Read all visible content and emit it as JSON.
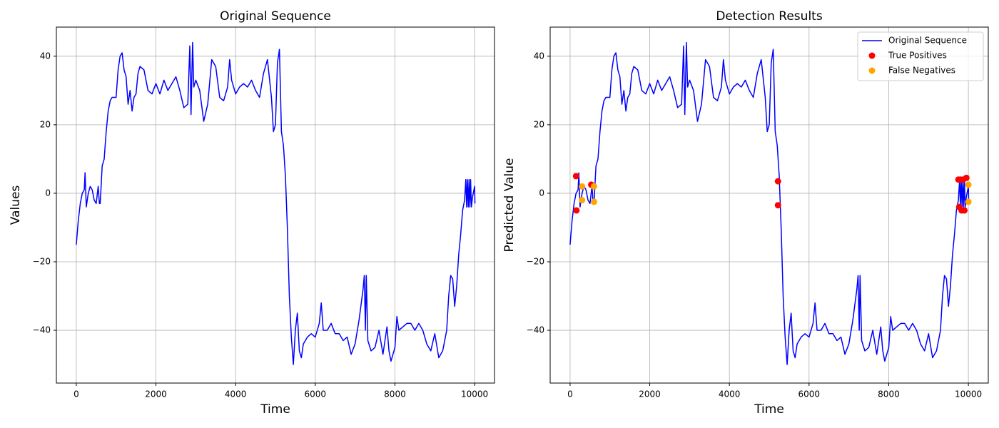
{
  "chart_data": [
    {
      "type": "line",
      "title": "Original Sequence",
      "xlabel": "Time",
      "ylabel": "Values",
      "xlim": [
        -500,
        10500
      ],
      "ylim": [
        -55.4,
        48.5
      ],
      "xticks": [
        0,
        2000,
        4000,
        6000,
        8000,
        10000
      ],
      "yticks": [
        {
          "value": -40,
          "label": "−40"
        },
        {
          "value": -20,
          "label": "−20"
        },
        0,
        20,
        40
      ],
      "grid": true,
      "series": [
        {
          "color": "#0000ff",
          "marker": "line",
          "x": [
            0,
            50,
            100,
            150,
            200,
            220,
            250,
            300,
            350,
            400,
            450,
            500,
            550,
            580,
            600,
            650,
            700,
            750,
            800,
            850,
            900,
            1000,
            1050,
            1100,
            1150,
            1200,
            1250,
            1300,
            1350,
            1400,
            1450,
            1500,
            1550,
            1600,
            1700,
            1800,
            1900,
            2000,
            2100,
            2200,
            2300,
            2400,
            2500,
            2600,
            2700,
            2800,
            2850,
            2880,
            2920,
            2950,
            3000,
            3100,
            3200,
            3300,
            3400,
            3500,
            3600,
            3700,
            3800,
            3850,
            3900,
            4000,
            4100,
            4200,
            4300,
            4400,
            4500,
            4600,
            4700,
            4800,
            4900,
            4950,
            5000,
            5050,
            5100,
            5150,
            5200,
            5250,
            5300,
            5350,
            5400,
            5450,
            5500,
            5550,
            5600,
            5650,
            5700,
            5800,
            5900,
            6000,
            6100,
            6150,
            6200,
            6300,
            6400,
            6500,
            6600,
            6700,
            6800,
            6900,
            7000,
            7100,
            7200,
            7230,
            7260,
            7280,
            7320,
            7400,
            7500,
            7600,
            7700,
            7800,
            7850,
            7900,
            8000,
            8050,
            8100,
            8200,
            8300,
            8400,
            8500,
            8600,
            8700,
            8800,
            8900,
            9000,
            9100,
            9200,
            9300,
            9350,
            9400,
            9450,
            9500,
            9550,
            9600,
            9650,
            9700,
            9750,
            9780,
            9800,
            9820,
            9840,
            9860,
            9880,
            9900,
            9920,
            9950,
            10000,
            10010
          ],
          "values": [
            -15,
            -8,
            -3,
            0,
            1,
            6,
            -4,
            0,
            2,
            1,
            -2,
            -3,
            2,
            -3,
            -3,
            8,
            10,
            18,
            24,
            27,
            28,
            28,
            36,
            40,
            41,
            36,
            34,
            26,
            30,
            24,
            28,
            29,
            35,
            37,
            36,
            30,
            29,
            32,
            29,
            33,
            30,
            32,
            34,
            30,
            25,
            26,
            43,
            23,
            44,
            31,
            33,
            30,
            21,
            26,
            39,
            37,
            28,
            27,
            31,
            39,
            33,
            29,
            31,
            32,
            31,
            33,
            30,
            28,
            35,
            39,
            28,
            18,
            20,
            38,
            42,
            18,
            14,
            5,
            -10,
            -30,
            -42,
            -50,
            -40,
            -35,
            -46,
            -48,
            -44,
            -42,
            -41,
            -42,
            -38,
            -32,
            -40,
            -40,
            -38,
            -41,
            -41,
            -43,
            -42,
            -47,
            -44,
            -37,
            -28,
            -24,
            -40,
            -24,
            -43,
            -46,
            -45,
            -40,
            -47,
            -39,
            -46,
            -49,
            -45,
            -36,
            -40,
            -39,
            -38,
            -38,
            -40,
            -38,
            -40,
            -44,
            -46,
            -41,
            -48,
            -46,
            -40,
            -30,
            -24,
            -25,
            -33,
            -27,
            -18,
            -12,
            -5,
            -2,
            4,
            -4,
            4,
            -4,
            4,
            -4,
            4,
            -4,
            -1,
            2,
            -3
          ]
        }
      ]
    },
    {
      "type": "line",
      "title": "Detection Results",
      "xlabel": "Time",
      "ylabel": "Predicted Value",
      "xlim": [
        -500,
        10500
      ],
      "ylim": [
        -55.4,
        48.5
      ],
      "xticks": [
        0,
        2000,
        4000,
        6000,
        8000,
        10000
      ],
      "yticks": [
        {
          "value": -40,
          "label": "−40"
        },
        {
          "value": -20,
          "label": "−20"
        },
        0,
        20,
        40
      ],
      "grid": true,
      "legend": "upper right",
      "series": [
        {
          "name": "Original Sequence",
          "color": "#0000ff",
          "marker": "line",
          "x": [
            0,
            50,
            100,
            150,
            200,
            220,
            250,
            300,
            350,
            400,
            450,
            500,
            550,
            580,
            600,
            650,
            700,
            750,
            800,
            850,
            900,
            1000,
            1050,
            1100,
            1150,
            1200,
            1250,
            1300,
            1350,
            1400,
            1450,
            1500,
            1550,
            1600,
            1700,
            1800,
            1900,
            2000,
            2100,
            2200,
            2300,
            2400,
            2500,
            2600,
            2700,
            2800,
            2850,
            2880,
            2920,
            2950,
            3000,
            3100,
            3200,
            3300,
            3400,
            3500,
            3600,
            3700,
            3800,
            3850,
            3900,
            4000,
            4100,
            4200,
            4300,
            4400,
            4500,
            4600,
            4700,
            4800,
            4900,
            4950,
            5000,
            5050,
            5100,
            5150,
            5200,
            5250,
            5300,
            5350,
            5400,
            5450,
            5500,
            5550,
            5600,
            5650,
            5700,
            5800,
            5900,
            6000,
            6100,
            6150,
            6200,
            6300,
            6400,
            6500,
            6600,
            6700,
            6800,
            6900,
            7000,
            7100,
            7200,
            7230,
            7260,
            7280,
            7320,
            7400,
            7500,
            7600,
            7700,
            7800,
            7850,
            7900,
            8000,
            8050,
            8100,
            8200,
            8300,
            8400,
            8500,
            8600,
            8700,
            8800,
            8900,
            9000,
            9100,
            9200,
            9300,
            9350,
            9400,
            9450,
            9500,
            9550,
            9600,
            9650,
            9700,
            9750,
            9780,
            9800,
            9820,
            9840,
            9860,
            9880,
            9900,
            9920,
            9950,
            10000,
            10010
          ],
          "values": [
            -15,
            -8,
            -3,
            0,
            1,
            6,
            -4,
            0,
            2,
            1,
            -2,
            -3,
            2,
            -3,
            -3,
            8,
            10,
            18,
            24,
            27,
            28,
            28,
            36,
            40,
            41,
            36,
            34,
            26,
            30,
            24,
            28,
            29,
            35,
            37,
            36,
            30,
            29,
            32,
            29,
            33,
            30,
            32,
            34,
            30,
            25,
            26,
            43,
            23,
            44,
            31,
            33,
            30,
            21,
            26,
            39,
            37,
            28,
            27,
            31,
            39,
            33,
            29,
            31,
            32,
            31,
            33,
            30,
            28,
            35,
            39,
            28,
            18,
            20,
            38,
            42,
            18,
            14,
            5,
            -10,
            -30,
            -42,
            -50,
            -40,
            -35,
            -46,
            -48,
            -44,
            -42,
            -41,
            -42,
            -38,
            -32,
            -40,
            -40,
            -38,
            -41,
            -41,
            -43,
            -42,
            -47,
            -44,
            -37,
            -28,
            -24,
            -40,
            -24,
            -43,
            -46,
            -45,
            -40,
            -47,
            -39,
            -46,
            -49,
            -45,
            -36,
            -40,
            -39,
            -38,
            -38,
            -40,
            -38,
            -40,
            -44,
            -46,
            -41,
            -48,
            -46,
            -40,
            -30,
            -24,
            -25,
            -33,
            -27,
            -18,
            -12,
            -5,
            -2,
            4,
            -4,
            4,
            -4,
            4,
            -4,
            4,
            -4,
            -1,
            2,
            -3
          ]
        },
        {
          "name": "True Positives",
          "color": "#ff0000",
          "marker": "o",
          "x": [
            150,
            160,
            530,
            5220,
            5220,
            9750,
            9770,
            9800,
            9830,
            9870,
            9900,
            9950
          ],
          "values": [
            5,
            -5,
            2.5,
            3.5,
            -3.5,
            4,
            -4,
            4,
            -5,
            4,
            -5,
            4.5
          ]
        },
        {
          "name": "False Negatives",
          "color": "#ffa500",
          "marker": "o",
          "x": [
            300,
            300,
            600,
            600,
            10000,
            10000
          ],
          "values": [
            2,
            -2,
            2,
            -2.5,
            2.5,
            -2.5
          ]
        }
      ]
    }
  ]
}
